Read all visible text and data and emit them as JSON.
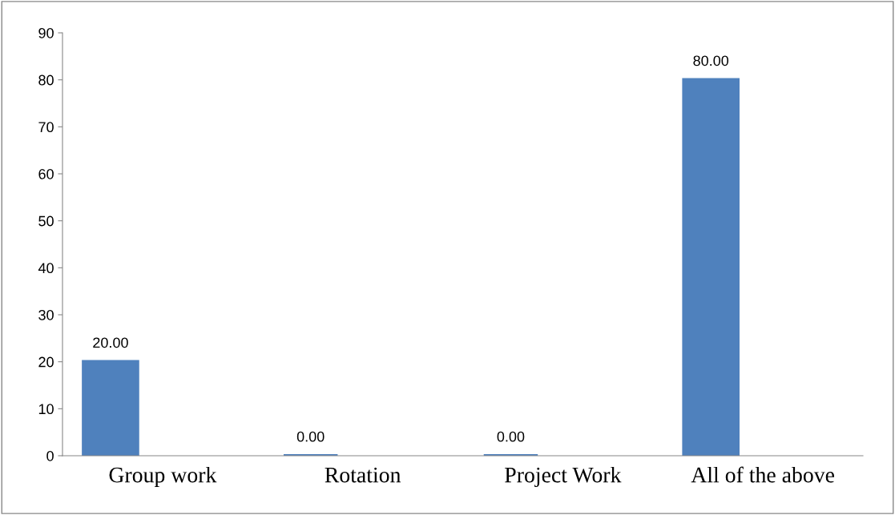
{
  "chart_data": {
    "type": "bar",
    "categories": [
      "Group work",
      "Rotation",
      "Project Work",
      "All of the above"
    ],
    "values": [
      20,
      0,
      0,
      80
    ],
    "value_labels": [
      "20.00",
      "0.00",
      "0.00",
      "80.00"
    ],
    "color": "#4f81bd",
    "ylim": [
      0,
      90
    ],
    "yticks": [
      0,
      10,
      20,
      30,
      40,
      50,
      60,
      70,
      80,
      90
    ],
    "grid": false,
    "legend": false
  }
}
